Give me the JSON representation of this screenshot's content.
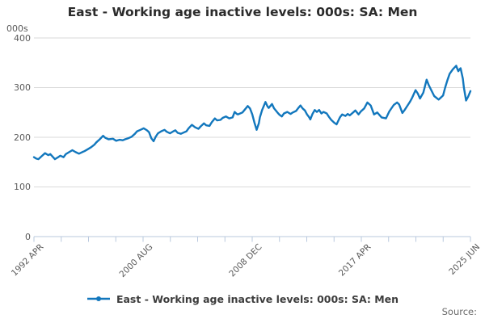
{
  "header": {
    "title": "East - Working age inactive levels: 000s: SA: Men"
  },
  "axes": {
    "y_unit_label": "000s"
  },
  "legend": {
    "label": "East - Working age inactive levels: 000s: SA: Men"
  },
  "footer": {
    "source_label": "Source:"
  },
  "colors": {
    "line": "#1277bd",
    "grid": "#d9d9d9",
    "axis": "#b9c8de",
    "tick_label": "#595959",
    "title": "#2b2b2b"
  },
  "chart_data": {
    "type": "line",
    "title": "East - Working age inactive levels: 000s: SA: Men",
    "xlabel": "",
    "ylabel": "000s",
    "ylim": [
      0,
      400
    ],
    "y_ticks": [
      0,
      100,
      200,
      300,
      400
    ],
    "x_range": [
      1992.33,
      2025.5
    ],
    "x_tick_labels": [
      "1992 APR",
      "2000 AUG",
      "2008 DEC",
      "2017 APR",
      "2025 JUN"
    ],
    "x_label_tick_indices": [
      0,
      4,
      8,
      12,
      16
    ],
    "minor_tick_count": 17,
    "grid": "horizontal",
    "legend_position": "bottom",
    "series": [
      {
        "name": "East - Working age inactive levels: 000s: SA: Men",
        "color": "#1277bd",
        "points": [
          [
            1992.33,
            160
          ],
          [
            1992.5,
            157
          ],
          [
            1992.67,
            156
          ],
          [
            1992.92,
            162
          ],
          [
            1993.17,
            168
          ],
          [
            1993.42,
            164
          ],
          [
            1993.58,
            166
          ],
          [
            1993.92,
            156
          ],
          [
            1994.17,
            160
          ],
          [
            1994.33,
            163
          ],
          [
            1994.58,
            160
          ],
          [
            1994.75,
            166
          ],
          [
            1995,
            170
          ],
          [
            1995.25,
            174
          ],
          [
            1995.5,
            170
          ],
          [
            1995.75,
            167
          ],
          [
            1996,
            170
          ],
          [
            1996.17,
            172
          ],
          [
            1996.42,
            176
          ],
          [
            1996.67,
            180
          ],
          [
            1996.92,
            185
          ],
          [
            1997.08,
            190
          ],
          [
            1997.33,
            196
          ],
          [
            1997.58,
            203
          ],
          [
            1997.75,
            199
          ],
          [
            1998,
            196
          ],
          [
            1998.33,
            197
          ],
          [
            1998.58,
            193
          ],
          [
            1998.83,
            195
          ],
          [
            1999.08,
            194
          ],
          [
            1999.25,
            196
          ],
          [
            1999.5,
            198
          ],
          [
            1999.75,
            201
          ],
          [
            2000,
            207
          ],
          [
            2000.17,
            212
          ],
          [
            2000.42,
            215
          ],
          [
            2000.67,
            218
          ],
          [
            2000.92,
            214
          ],
          [
            2001.08,
            210
          ],
          [
            2001.25,
            198
          ],
          [
            2001.42,
            192
          ],
          [
            2001.58,
            201
          ],
          [
            2001.75,
            208
          ],
          [
            2002,
            212
          ],
          [
            2002.25,
            215
          ],
          [
            2002.42,
            211
          ],
          [
            2002.67,
            208
          ],
          [
            2002.92,
            212
          ],
          [
            2003.08,
            214
          ],
          [
            2003.25,
            209
          ],
          [
            2003.5,
            207
          ],
          [
            2003.75,
            210
          ],
          [
            2003.92,
            212
          ],
          [
            2004.08,
            218
          ],
          [
            2004.33,
            225
          ],
          [
            2004.58,
            220
          ],
          [
            2004.83,
            217
          ],
          [
            2005,
            222
          ],
          [
            2005.25,
            228
          ],
          [
            2005.42,
            224
          ],
          [
            2005.67,
            223
          ],
          [
            2005.83,
            230
          ],
          [
            2006.08,
            238
          ],
          [
            2006.25,
            234
          ],
          [
            2006.5,
            235
          ],
          [
            2006.67,
            239
          ],
          [
            2006.92,
            242
          ],
          [
            2007.17,
            238
          ],
          [
            2007.42,
            240
          ],
          [
            2007.58,
            251
          ],
          [
            2007.75,
            247
          ],
          [
            2007.83,
            246
          ],
          [
            2008,
            248
          ],
          [
            2008.17,
            250
          ],
          [
            2008.33,
            255
          ],
          [
            2008.58,
            263
          ],
          [
            2008.75,
            258
          ],
          [
            2008.92,
            246
          ],
          [
            2009.08,
            230
          ],
          [
            2009.25,
            215
          ],
          [
            2009.42,
            228
          ],
          [
            2009.5,
            240
          ],
          [
            2009.67,
            255
          ],
          [
            2009.92,
            271
          ],
          [
            2010.08,
            262
          ],
          [
            2010.17,
            259
          ],
          [
            2010.42,
            267
          ],
          [
            2010.58,
            258
          ],
          [
            2010.83,
            250
          ],
          [
            2011,
            245
          ],
          [
            2011.17,
            242
          ],
          [
            2011.33,
            248
          ],
          [
            2011.58,
            251
          ],
          [
            2011.83,
            247
          ],
          [
            2012,
            250
          ],
          [
            2012.25,
            253
          ],
          [
            2012.42,
            259
          ],
          [
            2012.58,
            264
          ],
          [
            2012.75,
            258
          ],
          [
            2012.92,
            254
          ],
          [
            2013.08,
            246
          ],
          [
            2013.25,
            240
          ],
          [
            2013.33,
            236
          ],
          [
            2013.5,
            247
          ],
          [
            2013.67,
            255
          ],
          [
            2013.83,
            251
          ],
          [
            2014,
            255
          ],
          [
            2014.17,
            248
          ],
          [
            2014.33,
            251
          ],
          [
            2014.58,
            248
          ],
          [
            2014.75,
            241
          ],
          [
            2014.92,
            235
          ],
          [
            2015.17,
            229
          ],
          [
            2015.33,
            226
          ],
          [
            2015.58,
            240
          ],
          [
            2015.75,
            246
          ],
          [
            2016,
            243
          ],
          [
            2016.17,
            247
          ],
          [
            2016.33,
            244
          ],
          [
            2016.58,
            250
          ],
          [
            2016.75,
            254
          ],
          [
            2017,
            246
          ],
          [
            2017.17,
            252
          ],
          [
            2017.42,
            258
          ],
          [
            2017.67,
            270
          ],
          [
            2017.92,
            264
          ],
          [
            2018.17,
            246
          ],
          [
            2018.42,
            250
          ],
          [
            2018.75,
            240
          ],
          [
            2019.08,
            238
          ],
          [
            2019.33,
            252
          ],
          [
            2019.67,
            265
          ],
          [
            2019.92,
            270
          ],
          [
            2020.08,
            266
          ],
          [
            2020.33,
            249
          ],
          [
            2020.5,
            255
          ],
          [
            2020.67,
            262
          ],
          [
            2020.92,
            272
          ],
          [
            2021.08,
            280
          ],
          [
            2021.33,
            295
          ],
          [
            2021.5,
            288
          ],
          [
            2021.67,
            278
          ],
          [
            2021.92,
            290
          ],
          [
            2022.17,
            316
          ],
          [
            2022.33,
            305
          ],
          [
            2022.5,
            296
          ],
          [
            2022.75,
            283
          ],
          [
            2023.08,
            276
          ],
          [
            2023.25,
            280
          ],
          [
            2023.42,
            284
          ],
          [
            2023.58,
            300
          ],
          [
            2023.75,
            315
          ],
          [
            2023.92,
            328
          ],
          [
            2024.17,
            337
          ],
          [
            2024.42,
            344
          ],
          [
            2024.5,
            338
          ],
          [
            2024.58,
            333
          ],
          [
            2024.67,
            337
          ],
          [
            2024.75,
            339
          ],
          [
            2024.92,
            318
          ],
          [
            2025,
            300
          ],
          [
            2025.17,
            274
          ],
          [
            2025.33,
            282
          ],
          [
            2025.5,
            293
          ]
        ]
      }
    ]
  }
}
